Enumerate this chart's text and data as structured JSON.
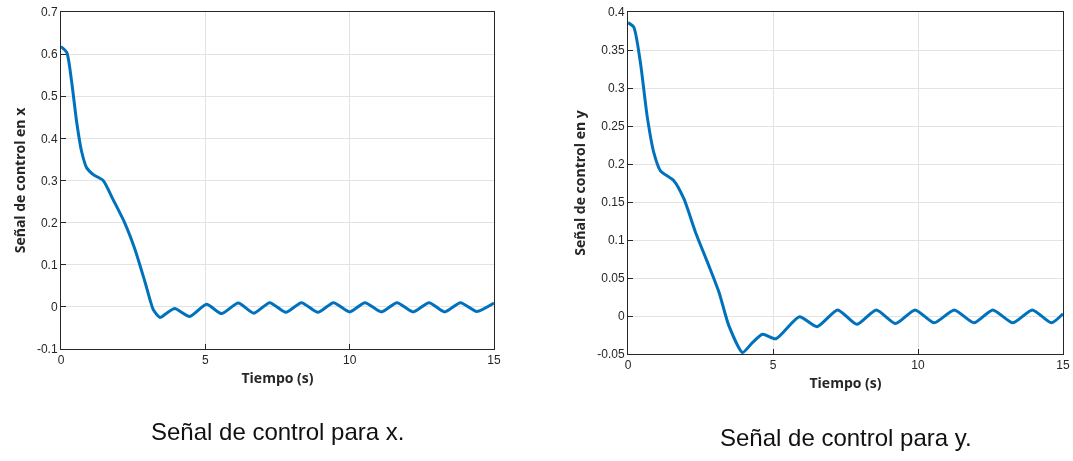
{
  "chart_data": [
    {
      "type": "line",
      "xlabel": "Tiempo (s)",
      "ylabel": "Señal de control en x",
      "annotations": [
        "Señal de control para x."
      ],
      "xlim": [
        0,
        15
      ],
      "ylim": [
        -0.1,
        0.7
      ],
      "xticks": [
        0,
        5,
        10,
        15
      ],
      "yticks": [
        -0.1,
        0,
        0.1,
        0.2,
        0.3,
        0.4,
        0.5,
        0.6,
        0.7
      ],
      "grid": true,
      "line_style": "solid",
      "marker": "none",
      "series": [
        {
          "color": "#0072bd",
          "x": [
            0,
            0.2,
            0.37,
            0.54,
            0.71,
            0.89,
            1.12,
            1.46,
            1.81,
            2.21,
            2.56,
            2.91,
            3.2,
            3.43,
            3.66,
            3.94,
            4.46,
            5.04,
            5.56,
            6.14,
            6.68,
            7.23,
            7.79,
            8.33,
            8.9,
            9.44,
            10.0,
            10.53,
            11.1,
            11.64,
            12.2,
            12.75,
            13.29,
            13.84,
            14.4,
            15
          ],
          "values": [
            0.618,
            0.604,
            0.534,
            0.44,
            0.37,
            0.33,
            0.314,
            0.3,
            0.254,
            0.199,
            0.137,
            0.059,
            -0.007,
            -0.025,
            -0.015,
            -0.004,
            -0.023,
            0.006,
            -0.016,
            0.009,
            -0.015,
            0.01,
            -0.013,
            0.01,
            -0.013,
            0.01,
            -0.012,
            0.01,
            -0.012,
            0.01,
            -0.012,
            0.01,
            -0.012,
            0.01,
            -0.011,
            0.009
          ]
        }
      ]
    },
    {
      "type": "line",
      "xlabel": "Tiempo (s)",
      "ylabel": "Señal de control en y",
      "annotations": [
        "Señal de control para y."
      ],
      "xlim": [
        0,
        15
      ],
      "ylim": [
        -0.05,
        0.4
      ],
      "xticks": [
        0,
        5,
        10,
        15
      ],
      "yticks": [
        -0.05,
        0,
        0.05,
        0.1,
        0.15,
        0.2,
        0.25,
        0.3,
        0.35,
        0.4
      ],
      "grid": true,
      "line_style": "solid",
      "marker": "none",
      "series": [
        {
          "color": "#0072bd",
          "x": [
            0,
            0.2,
            0.43,
            0.66,
            0.89,
            1.12,
            1.58,
            1.93,
            2.33,
            2.79,
            3.14,
            3.48,
            3.95,
            4.29,
            4.64,
            5.1,
            5.91,
            6.52,
            7.23,
            7.89,
            8.56,
            9.23,
            9.9,
            10.56,
            11.25,
            11.93,
            12.58,
            13.27,
            13.94,
            14.6,
            15
          ],
          "values": [
            0.386,
            0.38,
            0.333,
            0.263,
            0.215,
            0.191,
            0.178,
            0.154,
            0.11,
            0.066,
            0.031,
            -0.013,
            -0.048,
            -0.035,
            -0.024,
            -0.03,
            -0.001,
            -0.014,
            0.008,
            -0.011,
            0.008,
            -0.01,
            0.008,
            -0.009,
            0.008,
            -0.009,
            0.008,
            -0.009,
            0.008,
            -0.009,
            0.003
          ]
        }
      ]
    }
  ]
}
